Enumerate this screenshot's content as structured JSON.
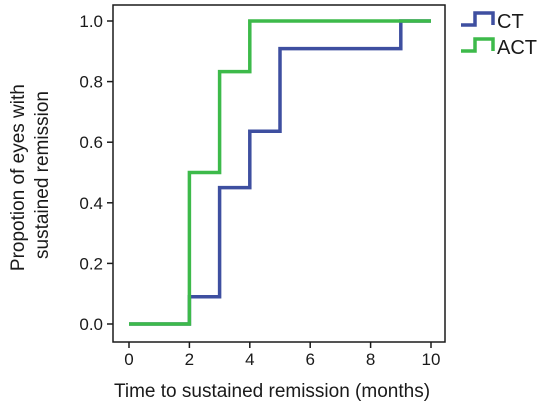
{
  "chart_data": {
    "type": "line",
    "step": true,
    "title": "",
    "xlabel": "Time to sustained remission (months)",
    "ylabel_lines": [
      "Propotion of eyes with",
      "sustained remission"
    ],
    "xlim": [
      0,
      10
    ],
    "ylim": [
      0.0,
      1.0
    ],
    "xticks": [
      0,
      2,
      4,
      6,
      8,
      10
    ],
    "yticks": [
      "0.0",
      "0.2",
      "0.4",
      "0.6",
      "0.8",
      "1.0"
    ],
    "grid": false,
    "legend_position": "top-right",
    "series": [
      {
        "name": "CT",
        "color": "#3e4fa0",
        "x": [
          0,
          2,
          3,
          4,
          5,
          9,
          10
        ],
        "y": [
          0.0,
          0.09,
          0.45,
          0.636,
          0.909,
          1.0,
          1.0
        ]
      },
      {
        "name": "ACT",
        "color": "#3dba4a",
        "x": [
          0,
          2,
          3,
          4,
          10
        ],
        "y": [
          0.0,
          0.5,
          0.833,
          1.0,
          1.0
        ]
      }
    ]
  }
}
